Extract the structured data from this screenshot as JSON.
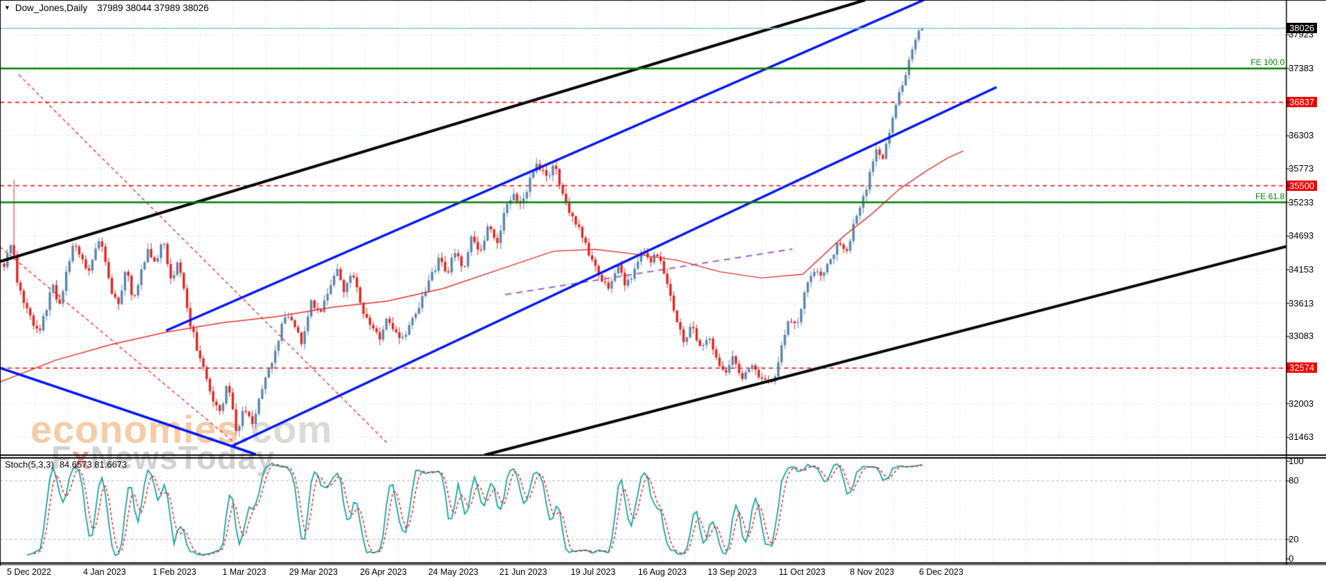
{
  "header": {
    "symbol_period": "Dow_Jones,Daily",
    "ohlc": "37989 38044 37989 38026"
  },
  "watermark": {
    "brand": "economies",
    "brand_suffix": ".com",
    "l2_f": "F",
    "l2_x": "x",
    "l2_rest": "NewsToday"
  },
  "indicator": {
    "name": "Stoch(5,3,3)",
    "values": "84.6573 81.6673",
    "axis_labels": [
      {
        "text": "100",
        "v": 100
      },
      {
        "text": "80",
        "v": 80
      },
      {
        "text": "20",
        "v": 20
      },
      {
        "text": "0",
        "v": 0
      }
    ],
    "levels": [
      80,
      20
    ]
  },
  "price_axis": {
    "labels": [
      {
        "text": "38026",
        "price": 38026,
        "badge": "black"
      },
      {
        "text": "37923",
        "price": 37923
      },
      {
        "text": "37383",
        "price": 37383
      },
      {
        "text": "36837",
        "price": 36837,
        "badge": "red"
      },
      {
        "text": "36303",
        "price": 36303
      },
      {
        "text": "35773",
        "price": 35773
      },
      {
        "text": "35500",
        "price": 35500,
        "badge": "red"
      },
      {
        "text": "35233",
        "price": 35233
      },
      {
        "text": "34693",
        "price": 34693
      },
      {
        "text": "34153",
        "price": 34153
      },
      {
        "text": "33613",
        "price": 33613
      },
      {
        "text": "33083",
        "price": 33083
      },
      {
        "text": "32574",
        "price": 32574,
        "badge": "red"
      },
      {
        "text": "32003",
        "price": 32003
      },
      {
        "text": "31463",
        "price": 31463
      }
    ]
  },
  "time_axis": {
    "labels": [
      "5 Dec 2022",
      "4 Jan 2023",
      "1 Feb 2023",
      "1 Mar 2023",
      "29 Mar 2023",
      "26 Apr 2023",
      "24 May 2023",
      "21 Jun 2023",
      "19 Jul 2023",
      "16 Aug 2023",
      "13 Sep 2023",
      "11 Oct 2023",
      "8 Nov 2023",
      "6 Dec 2023"
    ],
    "x": [
      42,
      151,
      252,
      353,
      453,
      554,
      655,
      756,
      857,
      957,
      1058,
      1159,
      1260,
      1360
    ]
  },
  "chart_data": {
    "type": "candlestick",
    "title": "Dow_Jones Daily with Stochastic (5,3,3)",
    "symbol": "Dow_Jones",
    "timeframe": "Daily",
    "last_bar_ohlc": {
      "open": 37989,
      "high": 38044,
      "low": 37989,
      "close": 38026
    },
    "price_axis_range": [
      31000,
      38450
    ],
    "grid": "on",
    "colors": {
      "bull_candle": "#5b85ad",
      "bear_candle": "#e02620",
      "grid": "#c9e9ea",
      "current_price_line": "#79cdd2",
      "fib_line": "#007f00",
      "alert_line": "#f30000",
      "trend_black": "#000000",
      "trend_blue": "#0013f0",
      "trend_violet": "#9e5fd0",
      "ma_line": "#e03030",
      "stoch_k": "#17a2a2",
      "stoch_d": "#dd2020"
    },
    "horizontal_lines": [
      {
        "name": "current-price-line",
        "price": 38026,
        "style": "solid",
        "color": "#79cdd2",
        "width": 1.5,
        "badge": "black"
      },
      {
        "name": "fib-extension-100",
        "price": 37383,
        "style": "solid",
        "color": "#007f00",
        "width": 2.5,
        "label": "FE 100.0"
      },
      {
        "name": "resistance-36837",
        "price": 36837,
        "style": "dash",
        "color": "#f30000",
        "width": 1.5,
        "badge": "red"
      },
      {
        "name": "pivot-35500",
        "price": 35500,
        "style": "dash",
        "color": "#f30000",
        "width": 1.5,
        "badge": "red"
      },
      {
        "name": "fib-extension-61.8",
        "price": 35233,
        "style": "solid",
        "color": "#007f00",
        "width": 2.5,
        "label": "FE 61.8"
      },
      {
        "name": "support-32574",
        "price": 32574,
        "style": "dash",
        "color": "#f30000",
        "width": 1.5,
        "badge": "red"
      }
    ],
    "fibonacci_extensions": [
      {
        "label": "FE 100.0",
        "price": 37383
      },
      {
        "label": "FE 61.8",
        "price": 35233
      }
    ],
    "trendlines": [
      {
        "name": "black-channel-upper",
        "color": "#000000",
        "width": 4,
        "from": [
          0,
          378
        ],
        "to": [
          1250,
          0
        ]
      },
      {
        "name": "black-channel-lower",
        "color": "#000000",
        "width": 4,
        "from": [
          700,
          658
        ],
        "to": [
          1860,
          356
        ]
      },
      {
        "name": "blue-channel-upper",
        "color": "#0013f0",
        "width": 3.5,
        "from": [
          240,
          478
        ],
        "to": [
          1335,
          0
        ]
      },
      {
        "name": "blue-channel-lower",
        "color": "#0013f0",
        "width": 3.5,
        "from": [
          335,
          645
        ],
        "to": [
          1440,
          126
        ]
      },
      {
        "name": "blue-falling-support",
        "color": "#0013f0",
        "width": 3.5,
        "from": [
          0,
          532
        ],
        "to": [
          370,
          657
        ]
      },
      {
        "name": "red-dashed-falling-upper",
        "color": "#ff2020",
        "width": 1.3,
        "dash": [
          5,
          4
        ],
        "from": [
          27,
          108
        ],
        "to": [
          560,
          641
        ]
      },
      {
        "name": "red-dashed-falling-lower",
        "color": "#ff2020",
        "width": 1.3,
        "dash": [
          5,
          4
        ],
        "from": [
          0,
          357
        ],
        "to": [
          345,
          645
        ]
      },
      {
        "name": "violet-dashed-trendline",
        "color": "#9e5fd0",
        "width": 2,
        "dash": [
          9,
          7
        ],
        "from": [
          730,
          426
        ],
        "to": [
          1145,
          360
        ]
      }
    ],
    "ma_path": [
      [
        0,
        32350
      ],
      [
        80,
        32700
      ],
      [
        160,
        32950
      ],
      [
        240,
        33150
      ],
      [
        320,
        33300
      ],
      [
        400,
        33400
      ],
      [
        480,
        33550
      ],
      [
        560,
        33650
      ],
      [
        640,
        33850
      ],
      [
        720,
        34150
      ],
      [
        800,
        34450
      ],
      [
        860,
        34480
      ],
      [
        920,
        34400
      ],
      [
        980,
        34300
      ],
      [
        1040,
        34120
      ],
      [
        1100,
        34020
      ],
      [
        1160,
        34080
      ],
      [
        1220,
        34700
      ],
      [
        1260,
        35050
      ],
      [
        1300,
        35450
      ],
      [
        1340,
        35750
      ],
      [
        1370,
        35950
      ],
      [
        1392,
        36060
      ]
    ],
    "swing_path": [
      [
        6,
        34250
      ],
      [
        14,
        34550
      ],
      [
        20,
        34400
      ],
      [
        26,
        33900
      ],
      [
        34,
        33650
      ],
      [
        44,
        33400
      ],
      [
        56,
        33100
      ],
      [
        66,
        33500
      ],
      [
        76,
        33900
      ],
      [
        86,
        33550
      ],
      [
        96,
        34100
      ],
      [
        108,
        34600
      ],
      [
        118,
        34350
      ],
      [
        130,
        34100
      ],
      [
        142,
        34700
      ],
      [
        152,
        34300
      ],
      [
        162,
        33800
      ],
      [
        172,
        33600
      ],
      [
        182,
        34250
      ],
      [
        192,
        33650
      ],
      [
        202,
        34050
      ],
      [
        214,
        34450
      ],
      [
        226,
        34300
      ],
      [
        236,
        34650
      ],
      [
        248,
        33950
      ],
      [
        258,
        34350
      ],
      [
        270,
        33500
      ],
      [
        282,
        33000
      ],
      [
        294,
        32550
      ],
      [
        306,
        32100
      ],
      [
        318,
        31900
      ],
      [
        330,
        32350
      ],
      [
        342,
        31500
      ],
      [
        352,
        31950
      ],
      [
        364,
        31650
      ],
      [
        376,
        32150
      ],
      [
        388,
        32500
      ],
      [
        400,
        32900
      ],
      [
        412,
        33450
      ],
      [
        424,
        33300
      ],
      [
        436,
        33000
      ],
      [
        450,
        33700
      ],
      [
        462,
        33400
      ],
      [
        474,
        33850
      ],
      [
        486,
        34150
      ],
      [
        498,
        33800
      ],
      [
        510,
        34100
      ],
      [
        522,
        33550
      ],
      [
        534,
        33300
      ],
      [
        548,
        33050
      ],
      [
        560,
        33400
      ],
      [
        572,
        33150
      ],
      [
        584,
        33000
      ],
      [
        596,
        33400
      ],
      [
        608,
        33650
      ],
      [
        620,
        33950
      ],
      [
        634,
        34300
      ],
      [
        646,
        34100
      ],
      [
        658,
        34450
      ],
      [
        670,
        34200
      ],
      [
        682,
        34700
      ],
      [
        694,
        34450
      ],
      [
        706,
        34850
      ],
      [
        718,
        34550
      ],
      [
        730,
        35100
      ],
      [
        742,
        35350
      ],
      [
        754,
        35150
      ],
      [
        766,
        35600
      ],
      [
        778,
        35850
      ],
      [
        790,
        35600
      ],
      [
        800,
        35850
      ],
      [
        810,
        35500
      ],
      [
        820,
        35150
      ],
      [
        832,
        34900
      ],
      [
        844,
        34600
      ],
      [
        856,
        34300
      ],
      [
        868,
        34000
      ],
      [
        880,
        33850
      ],
      [
        892,
        34250
      ],
      [
        904,
        33850
      ],
      [
        916,
        34150
      ],
      [
        928,
        34500
      ],
      [
        940,
        34300
      ],
      [
        952,
        34450
      ],
      [
        964,
        33950
      ],
      [
        976,
        33400
      ],
      [
        988,
        33000
      ],
      [
        1000,
        33250
      ],
      [
        1012,
        32850
      ],
      [
        1024,
        33050
      ],
      [
        1036,
        32650
      ],
      [
        1048,
        32500
      ],
      [
        1060,
        32800
      ],
      [
        1072,
        32400
      ],
      [
        1084,
        32650
      ],
      [
        1096,
        32400
      ],
      [
        1108,
        32350
      ],
      [
        1118,
        32300
      ],
      [
        1128,
        32900
      ],
      [
        1140,
        33400
      ],
      [
        1152,
        33250
      ],
      [
        1164,
        33900
      ],
      [
        1176,
        34150
      ],
      [
        1188,
        34000
      ],
      [
        1200,
        34350
      ],
      [
        1212,
        34600
      ],
      [
        1224,
        34450
      ],
      [
        1236,
        34950
      ],
      [
        1246,
        35250
      ],
      [
        1256,
        35650
      ],
      [
        1266,
        36050
      ],
      [
        1276,
        35950
      ],
      [
        1286,
        36450
      ],
      [
        1296,
        36850
      ],
      [
        1306,
        37200
      ],
      [
        1314,
        37550
      ],
      [
        1322,
        37850
      ],
      [
        1328,
        37950
      ],
      [
        1333,
        38026
      ]
    ],
    "stochastic": {
      "k_period": 5,
      "slowing": 3,
      "d_period": 3,
      "levels": [
        80,
        20
      ],
      "last_k": 84.6573,
      "last_d": 81.6673
    }
  }
}
